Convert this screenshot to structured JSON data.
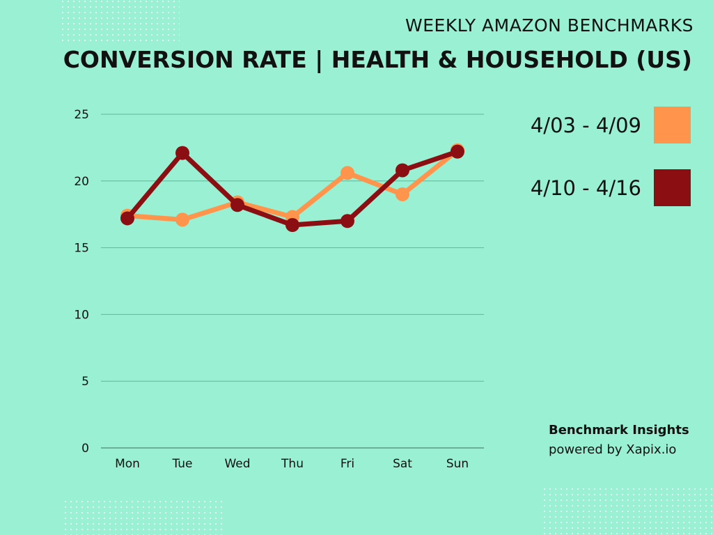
{
  "header": {
    "subtitle": "WEEKLY AMAZON BENCHMARKS",
    "title": "CONVERSION RATE | HEALTH & HOUSEHOLD (US)"
  },
  "credit": {
    "line1": "Benchmark Insights",
    "line2": "powered by Xapix.io"
  },
  "colors": {
    "background": "#99f0d2",
    "series1": "#ff944d",
    "series2": "#8b0f12",
    "grid": "#5fb89a"
  },
  "chart_data": {
    "type": "line",
    "title": "CONVERSION RATE | HEALTH & HOUSEHOLD (US)",
    "subtitle": "WEEKLY AMAZON BENCHMARKS",
    "xlabel": "",
    "ylabel": "",
    "categories": [
      "Mon",
      "Tue",
      "Wed",
      "Thu",
      "Fri",
      "Sat",
      "Sun"
    ],
    "ylim": [
      0,
      25
    ],
    "yticks": [
      "0",
      "5",
      "10",
      "15",
      "20",
      "25"
    ],
    "grid": true,
    "legend_position": "right",
    "series": [
      {
        "name": "4/03 - 4/09",
        "color": "#ff944d",
        "values": [
          17.4,
          17.1,
          18.4,
          17.3,
          20.6,
          19.0,
          22.3
        ]
      },
      {
        "name": "4/10 - 4/16",
        "color": "#8b0f12",
        "values": [
          17.2,
          22.1,
          18.2,
          16.7,
          17.0,
          20.8,
          22.2
        ]
      }
    ]
  }
}
